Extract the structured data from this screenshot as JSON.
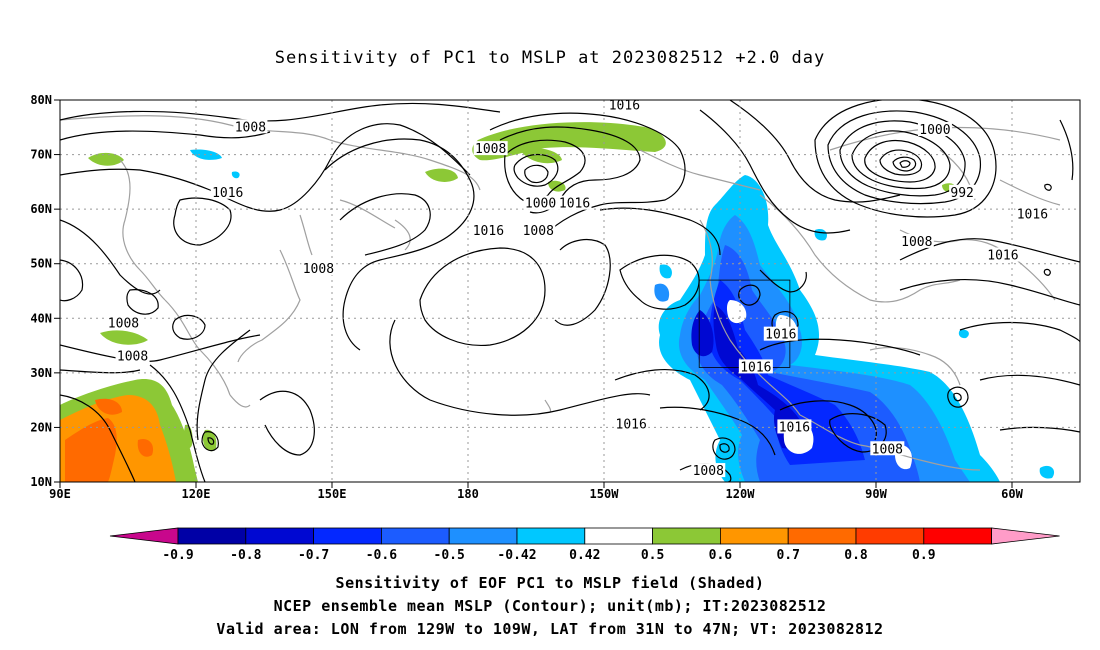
{
  "title": "Sensitivity of PC1 to MSLP at 2023082512 +2.0 day",
  "axes": {
    "lat_labels": [
      "80N",
      "70N",
      "60N",
      "50N",
      "40N",
      "30N",
      "20N",
      "10N"
    ],
    "lon_labels": [
      "90E",
      "120E",
      "150E",
      "180",
      "150W",
      "120W",
      "90W",
      "60W"
    ],
    "lat_values": [
      80,
      70,
      60,
      50,
      40,
      30,
      20,
      10
    ],
    "lon_values": [
      90,
      120,
      150,
      180,
      210,
      240,
      270,
      300
    ],
    "lon_range": [
      90,
      315
    ],
    "lat_range": [
      10,
      80
    ]
  },
  "contour_labels": [
    {
      "text": "1016",
      "lon": 214.5,
      "lat": 79
    },
    {
      "text": "1008",
      "lon": 132,
      "lat": 75
    },
    {
      "text": "1008",
      "lon": 185,
      "lat": 71
    },
    {
      "text": "1000",
      "lon": 283,
      "lat": 74.5
    },
    {
      "text": "992",
      "lon": 289,
      "lat": 63
    },
    {
      "text": "1016",
      "lon": 127,
      "lat": 63
    },
    {
      "text": "1000",
      "lon": 196,
      "lat": 61
    },
    {
      "text": "1016",
      "lon": 203.5,
      "lat": 61
    },
    {
      "text": "1016",
      "lon": 304.5,
      "lat": 59
    },
    {
      "text": "1008",
      "lon": 195.5,
      "lat": 56
    },
    {
      "text": "1016",
      "lon": 184.5,
      "lat": 56
    },
    {
      "text": "1008",
      "lon": 279,
      "lat": 54
    },
    {
      "text": "1016",
      "lon": 298,
      "lat": 51.5
    },
    {
      "text": "1008",
      "lon": 147,
      "lat": 49
    },
    {
      "text": "1016",
      "lon": 249,
      "lat": 37
    },
    {
      "text": "1008",
      "lon": 104,
      "lat": 39
    },
    {
      "text": "1008",
      "lon": 106,
      "lat": 33
    },
    {
      "text": "1016",
      "lon": 243.5,
      "lat": 31
    },
    {
      "text": "1016",
      "lon": 216,
      "lat": 20.5
    },
    {
      "text": "1016",
      "lon": 252,
      "lat": 20
    },
    {
      "text": "1008",
      "lon": 272.5,
      "lat": 16
    },
    {
      "text": "1008",
      "lon": 233,
      "lat": 12
    }
  ],
  "valid_box": {
    "lon_min": 231,
    "lon_max": 251,
    "lat_min": 31,
    "lat_max": 47
  },
  "colorbar": {
    "labels": [
      "-0.9",
      "-0.8",
      "-0.7",
      "-0.6",
      "-0.5",
      "-0.42",
      "0.42",
      "0.5",
      "0.6",
      "0.7",
      "0.8",
      "0.9"
    ],
    "colors": [
      "#0000a6",
      "#0008d2",
      "#0428ff",
      "#1c5cff",
      "#1e90ff",
      "#00c8ff",
      "#ffffff",
      "#8cc836",
      "#ff9600",
      "#ff6a00",
      "#ff3c00",
      "#ff0000"
    ],
    "low_extend_color": "#c8078c",
    "high_extend_color": "#ff9cc8"
  },
  "captions": [
    "Sensitivity of EOF PC1 to MSLP field (Shaded)",
    "NCEP ensemble mean MSLP (Contour); unit(mb); IT:2023082512",
    "Valid area: LON from 129W to 109W, LAT from 31N to 47N; VT: 2023082812"
  ]
}
